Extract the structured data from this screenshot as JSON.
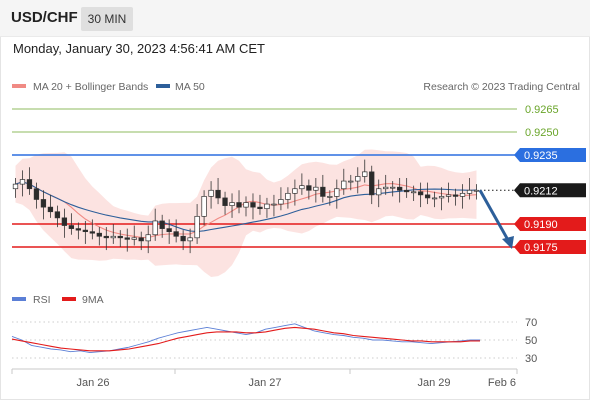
{
  "header": {
    "symbol": "USD/CHF",
    "interval": "30 MIN",
    "datetime": "Monday, January 30, 2023 4:56:41 AM CET"
  },
  "price_panel": {
    "legend": [
      {
        "label": "MA 20 + Bollinger Bands",
        "color": "#f08a84"
      },
      {
        "label": "MA 50",
        "color": "#2d5f9a"
      }
    ],
    "credit": "Research © 2023 Trading Central",
    "levels": [
      {
        "value": "0.9265",
        "type": "target",
        "color": "#6aa52a"
      },
      {
        "value": "0.9250",
        "type": "target",
        "color": "#6aa52a"
      },
      {
        "value": "0.9235",
        "type": "resistance",
        "color": "#2b6fe0"
      },
      {
        "value": "0.9212",
        "type": "last",
        "color": "#1a1a1a"
      },
      {
        "value": "0.9190",
        "type": "support",
        "color": "#e31b1b"
      },
      {
        "value": "0.9175",
        "type": "support",
        "color": "#e31b1b"
      }
    ],
    "arrow_direction": "down"
  },
  "rsi_panel": {
    "legend": [
      {
        "label": "RSI",
        "color": "#5b7fd6"
      },
      {
        "label": "9MA",
        "color": "#e31b1b"
      }
    ],
    "ticks": [
      "70",
      "50",
      "30"
    ]
  },
  "x_axis": [
    "Jan 26",
    "Jan 27",
    "Jan 29",
    "Feb 6"
  ],
  "chart_data": [
    {
      "type": "candlestick",
      "title": "USD/CHF",
      "interval": "30 MIN",
      "x_labels": [
        "Jan 26",
        "Jan 27",
        "Jan 29",
        "Feb 6"
      ],
      "ylim": [
        0.9163,
        0.927
      ],
      "series": [
        {
          "name": "USD/CHF",
          "points": "close",
          "close": [
            0.9216,
            0.9219,
            0.9213,
            0.9206,
            0.9201,
            0.9198,
            0.9194,
            0.9189,
            0.9187,
            0.9186,
            0.9185,
            0.9184,
            0.9182,
            0.9181,
            0.9182,
            0.9181,
            0.918,
            0.9181,
            0.9179,
            0.9183,
            0.9192,
            0.9187,
            0.9185,
            0.9182,
            0.9179,
            0.9181,
            0.9195,
            0.9208,
            0.9212,
            0.9207,
            0.9202,
            0.9204,
            0.9201,
            0.9204,
            0.9201,
            0.92,
            0.9203,
            0.9203,
            0.9206,
            0.921,
            0.9213,
            0.9215,
            0.9212,
            0.9214,
            0.9208,
            0.9208,
            0.9213,
            0.9218,
            0.9218,
            0.9221,
            0.9224,
            0.9209,
            0.9213,
            0.9214,
            0.9214,
            0.9212,
            0.9211,
            0.9211,
            0.9209,
            0.9207,
            0.9207,
            0.9208,
            0.9209,
            0.9208,
            0.921,
            0.9212,
            0.9212
          ]
        }
      ],
      "levels": [
        0.9265,
        0.925,
        0.9235,
        0.9212,
        0.919,
        0.9175
      ],
      "indicators": [
        "MA 20 + Bollinger Bands",
        "MA 50"
      ],
      "legend": "top-left"
    },
    {
      "type": "line",
      "title": "RSI",
      "x_labels": [
        "Jan 26",
        "Jan 27",
        "Jan 29",
        "Feb 6"
      ],
      "ylim": [
        20,
        80
      ],
      "yticks": [
        70,
        50,
        30
      ],
      "series": [
        {
          "name": "RSI",
          "values": [
            54,
            50,
            44,
            42,
            40,
            39,
            37,
            38,
            36,
            37,
            38,
            40,
            42,
            45,
            48,
            52,
            55,
            58,
            60,
            62,
            64,
            62,
            60,
            58,
            56,
            58,
            62,
            64,
            66,
            68,
            64,
            60,
            58,
            56,
            55,
            53,
            52,
            50,
            50,
            49,
            48,
            48,
            47,
            46,
            47,
            48,
            49,
            50,
            50
          ]
        },
        {
          "name": "9MA",
          "values": [
            51,
            49,
            47,
            45,
            43,
            41,
            40,
            39,
            38,
            38,
            38,
            39,
            40,
            42,
            44,
            46,
            49,
            52,
            54,
            56,
            58,
            59,
            59,
            59,
            58,
            58,
            59,
            61,
            63,
            64,
            63,
            62,
            60,
            58,
            57,
            55,
            54,
            53,
            52,
            51,
            50,
            49,
            49,
            48,
            48,
            48,
            48,
            49,
            49
          ]
        }
      ],
      "legend": "top-left"
    }
  ]
}
